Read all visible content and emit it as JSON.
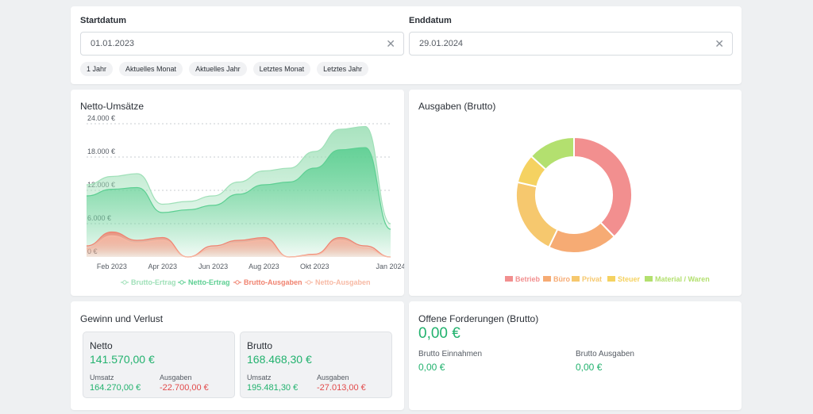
{
  "filters": {
    "start_label": "Startdatum",
    "start_value": "01.01.2023",
    "end_label": "Enddatum",
    "end_value": "29.01.2024",
    "clear_glyph": "✕",
    "quick_ranges": [
      "1 Jahr",
      "Aktuelles Monat",
      "Aktuelles Jahr",
      "Letztes Monat",
      "Letztes Jahr"
    ]
  },
  "netto_chart": {
    "title": "Netto-Umsätze"
  },
  "ausgaben_chart": {
    "title": "Ausgaben (Brutto)"
  },
  "chart_data": [
    {
      "type": "area",
      "title": "Netto-Umsätze",
      "y_ticks": [
        "0 €",
        "6.000 €",
        "12.000 €",
        "18.000 €",
        "24.000 €"
      ],
      "ylim": [
        0,
        24000
      ],
      "x_tick_labels": [
        "Feb 2023",
        "Apr 2023",
        "Jun 2023",
        "Aug 2023",
        "Okt 2023",
        "Jan 2024"
      ],
      "x": [
        "Jan 2023",
        "Feb 2023",
        "Mär 2023",
        "Apr 2023",
        "Mai 2023",
        "Jun 2023",
        "Jul 2023",
        "Aug 2023",
        "Sep 2023",
        "Okt 2023",
        "Nov 2023",
        "Dez 2023",
        "Jan 2024"
      ],
      "series": [
        {
          "name": "Brutto-Ertrag",
          "color": "#9fe0b8",
          "values": [
            13000,
            14500,
            15000,
            9500,
            10000,
            11000,
            13500,
            15500,
            16000,
            19000,
            23000,
            23500,
            6000
          ]
        },
        {
          "name": "Netto-Ertrag",
          "color": "#5ccf92",
          "values": [
            11000,
            12200,
            12500,
            8000,
            8500,
            9300,
            11300,
            13000,
            13500,
            16000,
            19300,
            19700,
            5000
          ]
        },
        {
          "name": "Brutto-Ausgaben",
          "color": "#f0826f",
          "values": [
            2000,
            4500,
            3000,
            3500,
            0,
            2000,
            3000,
            3500,
            0,
            500,
            3500,
            2000,
            0
          ]
        },
        {
          "name": "Netto-Ausgaben",
          "color": "#f7b9a4",
          "values": [
            1500,
            3800,
            2500,
            3000,
            0,
            1600,
            2500,
            3000,
            0,
            400,
            3000,
            1600,
            0
          ]
        }
      ],
      "legend_position": "bottom-right",
      "grid": true
    },
    {
      "type": "pie",
      "title": "Ausgaben (Brutto)",
      "donut": true,
      "series": [
        {
          "name": "Betrieb",
          "color": "#f28f8f",
          "value": 37
        },
        {
          "name": "Büro",
          "color": "#f6ab74",
          "value": 19
        },
        {
          "name": "Privat",
          "color": "#f6c86e",
          "value": 21
        },
        {
          "name": "Steuer",
          "color": "#f5d261",
          "value": 8
        },
        {
          "name": "Material / Waren",
          "color": "#b3e06f",
          "value": 13
        }
      ],
      "legend_position": "bottom-right"
    }
  ],
  "gewinn": {
    "title": "Gewinn und Verlust",
    "netto": {
      "label": "Netto",
      "amount": "141.570,00 €",
      "umsatz_label": "Umsatz",
      "umsatz_value": "164.270,00 €",
      "ausgaben_label": "Ausgaben",
      "ausgaben_value": "-22.700,00 €"
    },
    "brutto": {
      "label": "Brutto",
      "amount": "168.468,30 €",
      "umsatz_label": "Umsatz",
      "umsatz_value": "195.481,30 €",
      "ausgaben_label": "Ausgaben",
      "ausgaben_value": "-27.013,00 €"
    }
  },
  "forderungen": {
    "title": "Offene Forderungen (Brutto)",
    "amount": "0,00 €",
    "einnahmen_label": "Brutto Einnahmen",
    "einnahmen_value": "0,00 €",
    "ausgaben_label": "Brutto Ausgaben",
    "ausgaben_value": "0,00 €"
  },
  "colors": {
    "positive": "#22b26e",
    "negative": "#e24a4a",
    "background": "#eef0f2"
  }
}
